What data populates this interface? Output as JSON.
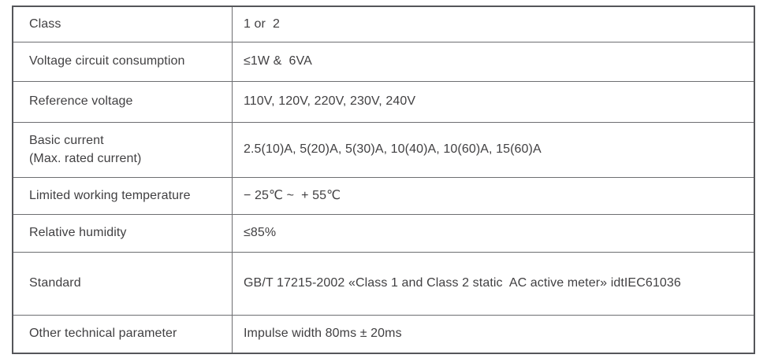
{
  "table": {
    "rows": [
      {
        "label": "Class",
        "value": "1 or  2"
      },
      {
        "label": "Voltage circuit consumption",
        "value": "≤1W &  6VA"
      },
      {
        "label": "Reference voltage",
        "value": "110V, 120V, 220V, 230V, 240V"
      },
      {
        "label": "Basic current\n(Max. rated current)",
        "value": "2.5(10)A, 5(20)A, 5(30)A, 10(40)A, 10(60)A, 15(60)A"
      },
      {
        "label": "Limited working temperature",
        "value": "− 25℃ ~  + 55℃"
      },
      {
        "label": "Relative humidity",
        "value": "≤85%"
      },
      {
        "label": "Standard",
        "value": "GB/T 17215-2002 «Class 1 and Class 2 static  AC active meter» idtIEC61036"
      },
      {
        "label": "Other technical parameter",
        "value": "Impulse width 80ms ± 20ms"
      }
    ]
  },
  "colors": {
    "background": "#ffffff",
    "outer_border": "#55565a",
    "inner_border": "#6d6e71",
    "text": "#414042"
  }
}
